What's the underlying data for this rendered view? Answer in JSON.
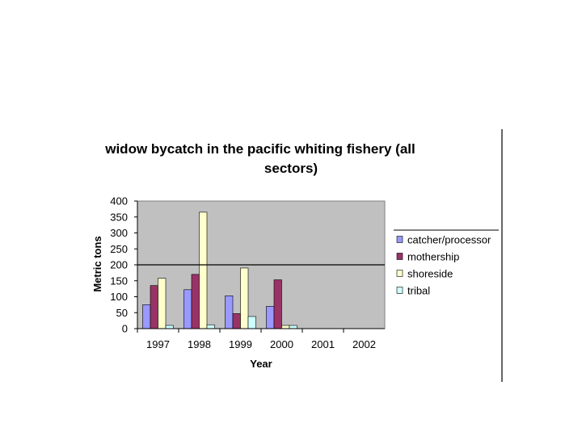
{
  "chart_data": {
    "type": "bar",
    "title_line1": "widow bycatch in the pacific whiting fishery (all",
    "title_line2": "sectors)",
    "xlabel": "Year",
    "ylabel": "Metric tons",
    "categories": [
      "1997",
      "1998",
      "1999",
      "2000",
      "2001",
      "2002"
    ],
    "ylim": [
      0,
      400
    ],
    "yticks": [
      0,
      50,
      100,
      150,
      200,
      250,
      300,
      350,
      400
    ],
    "ytick_labels": [
      "0",
      "50",
      "100",
      "150",
      "200",
      "250",
      "300",
      "350",
      "400"
    ],
    "reference_line": 200,
    "grid": false,
    "legend_position": "right",
    "plot_background": "#c0c0c0",
    "series": [
      {
        "name": "catcher/processor",
        "color": "#9999ff",
        "values": [
          75,
          122,
          103,
          70,
          0,
          0
        ]
      },
      {
        "name": "mothership",
        "color": "#993366",
        "values": [
          135,
          170,
          47,
          153,
          0,
          0
        ]
      },
      {
        "name": "shoreside",
        "color": "#ffffcc",
        "values": [
          158,
          365,
          190,
          10,
          0,
          0
        ]
      },
      {
        "name": "tribal",
        "color": "#ccffff",
        "values": [
          10,
          12,
          38,
          10,
          0,
          0
        ]
      }
    ]
  }
}
